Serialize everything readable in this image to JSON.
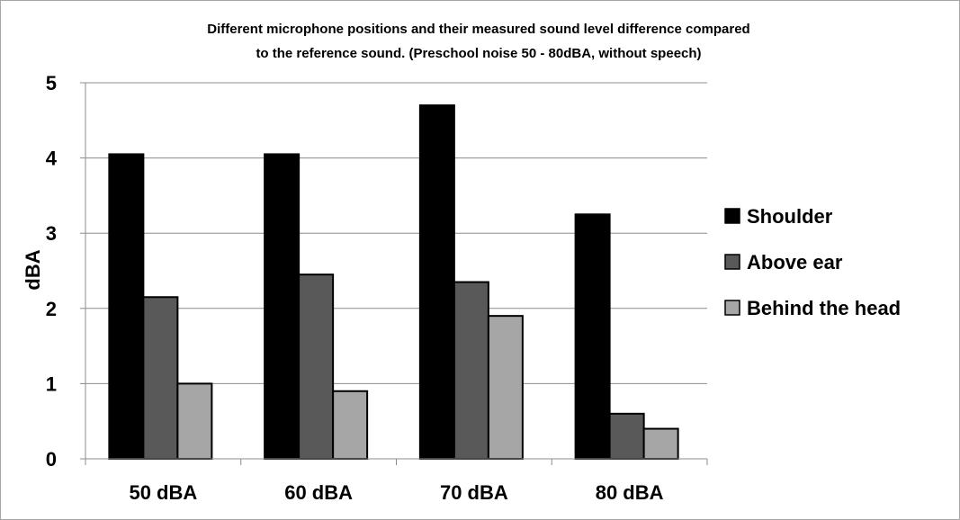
{
  "chart_data": {
    "type": "bar",
    "title": "Different microphone positions and their measured sound level difference  compared",
    "subtitle": "to the reference sound. (Preschool noise 50 - 80dBA, without speech)",
    "xlabel": "",
    "ylabel": "dBA",
    "categories": [
      "50 dBA",
      "60 dBA",
      "70 dBA",
      "80 dBA"
    ],
    "ylim": [
      0,
      5
    ],
    "yticks": [
      "0",
      "1",
      "2",
      "3",
      "4",
      "5"
    ],
    "grid": true,
    "legend_position": "right",
    "series": [
      {
        "name": "Shoulder",
        "color": "#000000",
        "values": [
          4.05,
          4.05,
          4.7,
          3.25
        ]
      },
      {
        "name": "Above ear",
        "color": "#595959",
        "values": [
          2.15,
          2.45,
          2.35,
          0.6
        ]
      },
      {
        "name": "Behind the head",
        "color": "#a6a6a6",
        "values": [
          1.0,
          0.9,
          1.9,
          0.4
        ]
      }
    ]
  }
}
